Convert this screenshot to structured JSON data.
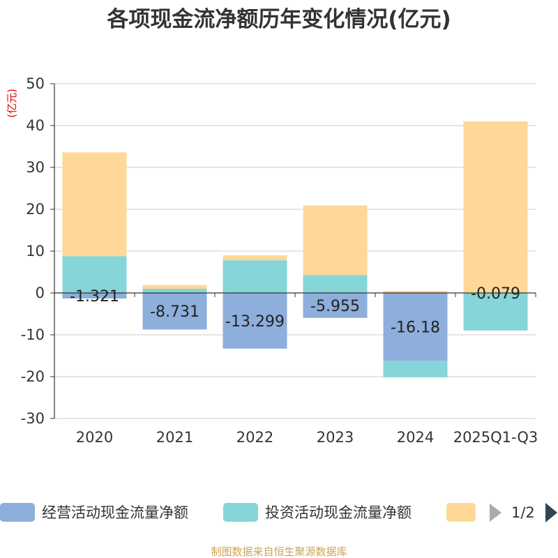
{
  "chart_data": {
    "type": "bar",
    "stacked": true,
    "title": "各项现金流净额历年变化情况(亿元)",
    "ylabel": "(亿元)",
    "xlabel": "",
    "ylim": [
      -30,
      50
    ],
    "yticks": [
      50,
      40,
      30,
      20,
      10,
      0,
      -10,
      -20,
      -30
    ],
    "grid": true,
    "categories": [
      "2020",
      "2021",
      "2022",
      "2023",
      "2024",
      "2025Q1-Q3"
    ],
    "series": [
      {
        "name": "经营活动现金流量净额",
        "color": "#8eaedb",
        "values": [
          -1.321,
          -8.731,
          -13.299,
          -5.955,
          -16.18,
          -0.079
        ]
      },
      {
        "name": "投资活动现金流量净额",
        "color": "#86d5d8",
        "values": [
          8.8,
          1.0,
          7.8,
          4.3,
          -4.0,
          -8.9
        ]
      },
      {
        "name": "",
        "color": "#ffd898",
        "values": [
          24.8,
          0.9,
          1.2,
          16.6,
          0.5,
          41.0
        ]
      }
    ],
    "data_labels": [
      "-1.321",
      "-8.731",
      "-13.299",
      "-5.955",
      "-16.18",
      "-0.079"
    ],
    "legend_position": "bottom"
  },
  "legend": {
    "items": [
      "经营活动现金流量净额",
      "投资活动现金流量净额",
      ""
    ],
    "page": "1/2"
  },
  "source_note": "制图数据来自恒生聚源数据库"
}
